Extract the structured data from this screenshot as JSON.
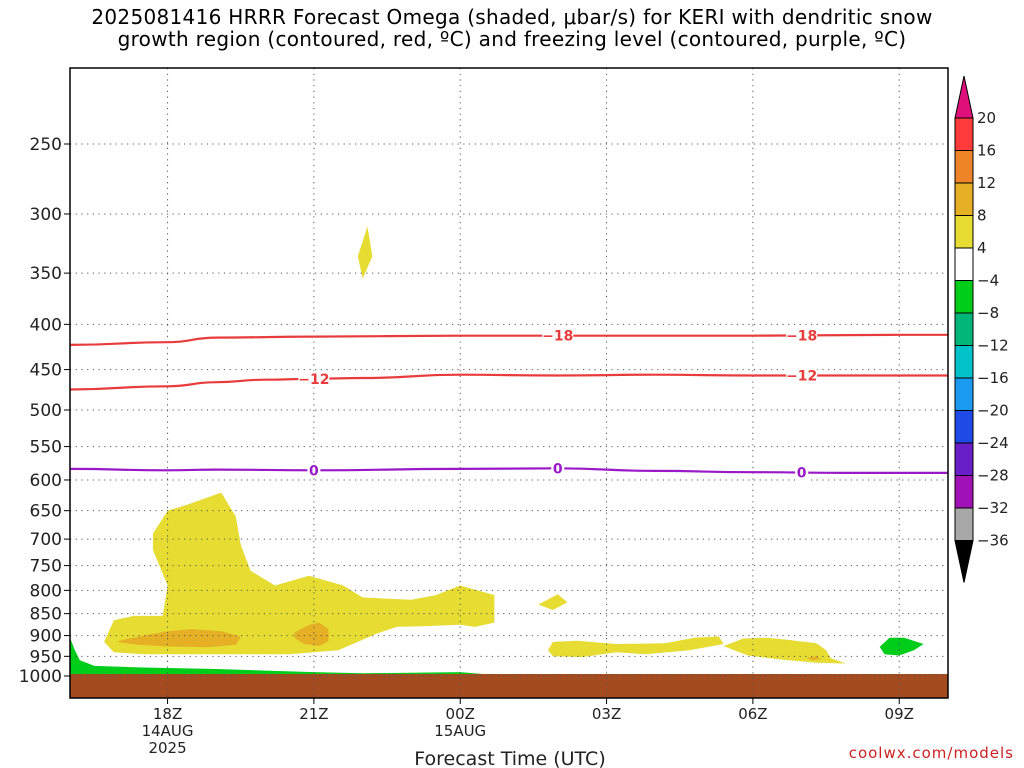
{
  "title": {
    "line1": "2025081416 HRRR Forecast Omega (shaded, μbar/s) for KERI with dendritic snow",
    "line2": "growth region (contoured, red, ºC) and freezing level (contoured, purple, ºC)"
  },
  "credit": "coolwx.com/models",
  "chart_data": {
    "type": "contour",
    "xlabel": "Forecast Time (UTC)",
    "x_ticks": [
      {
        "hour": 18,
        "label": "18Z",
        "sub": [
          "14AUG",
          "2025"
        ]
      },
      {
        "hour": 21,
        "label": "21Z",
        "sub": []
      },
      {
        "hour": 24,
        "label": "00Z",
        "sub": [
          "15AUG"
        ]
      },
      {
        "hour": 27,
        "label": "03Z",
        "sub": []
      },
      {
        "hour": 30,
        "label": "06Z",
        "sub": []
      },
      {
        "hour": 33,
        "label": "09Z",
        "sub": []
      }
    ],
    "xlim_hours": [
      16,
      34
    ],
    "ylim_hpa": [
      1030,
      200
    ],
    "y_scale": "log",
    "y_ticks": [
      250,
      300,
      350,
      400,
      450,
      500,
      550,
      600,
      650,
      700,
      750,
      800,
      850,
      900,
      950,
      1000
    ],
    "grid": "dotted",
    "colorbar": {
      "labels": [
        "20",
        "16",
        "12",
        "8",
        "4",
        "-4",
        "-8",
        "-12",
        "-16",
        "-20",
        "-24",
        "-28",
        "-32",
        "-36"
      ],
      "bands": [
        {
          "range": [
            16,
            20
          ],
          "color": "#ff3b3b"
        },
        {
          "range": [
            12,
            16
          ],
          "color": "#ee8428"
        },
        {
          "range": [
            8,
            12
          ],
          "color": "#e6b024"
        },
        {
          "range": [
            4,
            8
          ],
          "color": "#e6dc32"
        },
        {
          "range": [
            -4,
            4
          ],
          "color": "#ffffff"
        },
        {
          "range": [
            -8,
            -4
          ],
          "color": "#00cc1a"
        },
        {
          "range": [
            -12,
            -8
          ],
          "color": "#00b77a"
        },
        {
          "range": [
            -16,
            -12
          ],
          "color": "#00c2c8"
        },
        {
          "range": [
            -20,
            -16
          ],
          "color": "#1a9bf0"
        },
        {
          "range": [
            -24,
            -20
          ],
          "color": "#1e4ae6"
        },
        {
          "range": [
            -28,
            -24
          ],
          "color": "#6a1ec8"
        },
        {
          "range": [
            -32,
            -28
          ],
          "color": "#a012b8"
        },
        {
          "range": [
            -36,
            -32
          ],
          "color": "#a8a8a8"
        }
      ],
      "top_arrow_color": "#e0107a",
      "bottom_arrow_color": "#000000"
    },
    "contours": [
      {
        "name": "dgz-minus18",
        "label": "-18",
        "color": "#e83c3c",
        "points": [
          [
            16,
            422
          ],
          [
            18,
            419
          ],
          [
            19,
            414
          ],
          [
            21,
            413
          ],
          [
            24,
            412
          ],
          [
            27,
            412
          ],
          [
            30,
            412
          ],
          [
            33,
            411
          ],
          [
            34,
            411
          ]
        ],
        "label_hours": [
          18.0,
          23.0
        ]
      },
      {
        "name": "dgz-minus12",
        "label": "-12",
        "color": "#e83c3c",
        "points": [
          [
            16,
            474
          ],
          [
            18,
            470
          ],
          [
            19,
            465
          ],
          [
            20,
            462
          ],
          [
            21,
            461
          ],
          [
            22,
            460
          ],
          [
            24,
            456
          ],
          [
            26,
            457
          ],
          [
            28,
            456
          ],
          [
            30,
            457
          ],
          [
            32,
            457
          ],
          [
            34,
            457
          ]
        ],
        "label_hours": [
          21.0,
          23.0
        ]
      },
      {
        "name": "freezing-level",
        "label": "0",
        "color": "#9a18c8",
        "points": [
          [
            16,
            583
          ],
          [
            18,
            585
          ],
          [
            19,
            584
          ],
          [
            21,
            585
          ],
          [
            24,
            583
          ],
          [
            26,
            582
          ],
          [
            28,
            586
          ],
          [
            30,
            588
          ],
          [
            32,
            589
          ],
          [
            34,
            589
          ]
        ],
        "label_hours": [
          21.0,
          26.0,
          23.0
        ]
      }
    ],
    "shaded_regions": [
      {
        "name": "omega-4-8-small-upper",
        "band": "4 to 8",
        "color": "#e6dc32",
        "points": [
          [
            21.9,
            335
          ],
          [
            22.1,
            310
          ],
          [
            22.2,
            335
          ],
          [
            22.0,
            355
          ]
        ]
      },
      {
        "name": "omega-4-8-main",
        "band": "4 to 8",
        "color": "#e6dc32",
        "points": [
          [
            16.7,
            915
          ],
          [
            16.9,
            865
          ],
          [
            17.3,
            855
          ],
          [
            17.9,
            855
          ],
          [
            18.0,
            790
          ],
          [
            17.7,
            720
          ],
          [
            17.7,
            690
          ],
          [
            18.0,
            650
          ],
          [
            18.4,
            640
          ],
          [
            19.1,
            620
          ],
          [
            19.4,
            660
          ],
          [
            19.5,
            710
          ],
          [
            19.7,
            760
          ],
          [
            20.2,
            790
          ],
          [
            20.9,
            770
          ],
          [
            21.6,
            790
          ],
          [
            22.0,
            815
          ],
          [
            23.0,
            820
          ],
          [
            23.5,
            810
          ],
          [
            24.0,
            790
          ],
          [
            24.7,
            810
          ],
          [
            24.7,
            870
          ],
          [
            24.3,
            880
          ],
          [
            24.0,
            875
          ],
          [
            23.3,
            878
          ],
          [
            22.7,
            880
          ],
          [
            22.3,
            895
          ],
          [
            21.5,
            935
          ],
          [
            20.5,
            945
          ],
          [
            18.8,
            945
          ],
          [
            17.5,
            945
          ],
          [
            16.9,
            940
          ]
        ]
      },
      {
        "name": "omega-8-12-low",
        "band": "8 to 12",
        "color": "#e6b024",
        "points": [
          [
            17.0,
            912
          ],
          [
            17.6,
            898
          ],
          [
            18.0,
            890
          ],
          [
            18.5,
            885
          ],
          [
            19.1,
            890
          ],
          [
            19.5,
            903
          ],
          [
            19.4,
            922
          ],
          [
            18.8,
            928
          ],
          [
            18.0,
            926
          ],
          [
            17.4,
            922
          ],
          [
            17.0,
            916
          ]
        ]
      },
      {
        "name": "omega-8-12-21z",
        "band": "8 to 12",
        "color": "#e6b024",
        "points": [
          [
            20.6,
            893
          ],
          [
            20.9,
            875
          ],
          [
            21.1,
            870
          ],
          [
            21.3,
            885
          ],
          [
            21.3,
            913
          ],
          [
            21.1,
            925
          ],
          [
            20.8,
            920
          ],
          [
            20.6,
            905
          ]
        ]
      },
      {
        "name": "omega-4-8-02z",
        "band": "4 to 8",
        "color": "#e6dc32",
        "points": [
          [
            25.6,
            830
          ],
          [
            26.0,
            808
          ],
          [
            26.2,
            825
          ],
          [
            25.9,
            842
          ]
        ]
      },
      {
        "name": "omega-4-8-03z",
        "band": "4 to 8",
        "color": "#e6dc32",
        "points": [
          [
            25.8,
            935
          ],
          [
            25.9,
            915
          ],
          [
            26.4,
            912
          ],
          [
            27.2,
            920
          ],
          [
            28.2,
            918
          ],
          [
            28.8,
            905
          ],
          [
            29.3,
            902
          ],
          [
            29.4,
            920
          ],
          [
            28.7,
            935
          ],
          [
            27.8,
            945
          ],
          [
            27.2,
            940
          ],
          [
            26.5,
            952
          ],
          [
            25.9,
            950
          ]
        ]
      },
      {
        "name": "omega-4-8-06z",
        "band": "4 to 8",
        "color": "#e6dc32",
        "points": [
          [
            29.4,
            925
          ],
          [
            29.8,
            907
          ],
          [
            30.3,
            905
          ],
          [
            30.7,
            910
          ],
          [
            31.3,
            918
          ],
          [
            31.5,
            935
          ],
          [
            31.6,
            955
          ],
          [
            31.9,
            968
          ],
          [
            31.3,
            966
          ],
          [
            30.5,
            957
          ],
          [
            29.9,
            948
          ]
        ]
      },
      {
        "name": "omega-8-12-06z",
        "band": "8 to 12",
        "color": "#e6b024",
        "points": [
          [
            31.1,
            954
          ],
          [
            31.3,
            950
          ],
          [
            31.4,
            957
          ],
          [
            31.2,
            960
          ]
        ]
      },
      {
        "name": "omega-minus4-minus8-08z",
        "band": "-4 to -8",
        "color": "#00cc1a",
        "points": [
          [
            32.6,
            927
          ],
          [
            32.8,
            905
          ],
          [
            33.1,
            905
          ],
          [
            33.5,
            920
          ],
          [
            33.3,
            935
          ],
          [
            33.0,
            948
          ],
          [
            32.7,
            945
          ]
        ]
      },
      {
        "name": "omega-minus4-minus8-surface",
        "band": "-4 to -8",
        "color": "#00cc1a",
        "points": [
          [
            16.0,
            905
          ],
          [
            16.1,
            935
          ],
          [
            16.2,
            960
          ],
          [
            16.5,
            974
          ],
          [
            17.5,
            978
          ],
          [
            19.0,
            982
          ],
          [
            21.0,
            990
          ],
          [
            22.0,
            993
          ],
          [
            24.0,
            990
          ],
          [
            24.5,
            995
          ],
          [
            16.0,
            1000
          ]
        ]
      }
    ],
    "terrain": {
      "name": "surface-terrain",
      "color": "#a44c20",
      "top_hpa": 1000
    }
  }
}
